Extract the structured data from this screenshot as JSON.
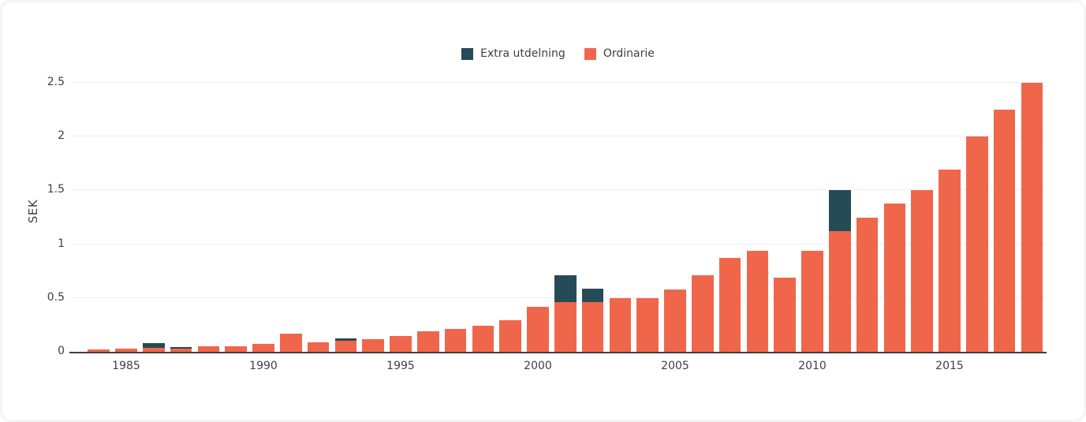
{
  "legend": {
    "items": [
      {
        "label": "Extra utdelning",
        "color": "#254b57"
      },
      {
        "label": "Ordinarie",
        "color": "#f0664b"
      }
    ]
  },
  "chart_data": {
    "type": "bar",
    "stacked": true,
    "title": "",
    "xlabel": "",
    "ylabel": "SEK",
    "ylim": [
      0,
      2.5
    ],
    "grid": true,
    "legend_position": "top-center",
    "x": [
      1984,
      1985,
      1986,
      1987,
      1988,
      1989,
      1990,
      1991,
      1992,
      1993,
      1994,
      1995,
      1996,
      1997,
      1998,
      1999,
      2000,
      2001,
      2002,
      2003,
      2004,
      2005,
      2006,
      2007,
      2008,
      2009,
      2010,
      2011,
      2012,
      2013,
      2014,
      2015,
      2016,
      2017,
      2018
    ],
    "xticks": [
      1985,
      1990,
      1995,
      2000,
      2005,
      2010,
      2015
    ],
    "ytick_values": [
      0,
      0.5,
      1,
      1.5,
      2,
      2.5
    ],
    "ytick_labels": [
      "0",
      "0.5",
      "1",
      "1.5",
      "2",
      "2.5"
    ],
    "series": [
      {
        "name": "Ordinarie",
        "color": "#f0664b",
        "values": [
          0.02,
          0.03,
          0.04,
          0.03,
          0.055,
          0.05,
          0.07,
          0.17,
          0.09,
          0.1,
          0.115,
          0.15,
          0.19,
          0.21,
          0.24,
          0.29,
          0.42,
          0.46,
          0.46,
          0.5,
          0.5,
          0.58,
          0.71,
          0.87,
          0.94,
          0.69,
          0.94,
          1.125,
          1.25,
          1.375,
          1.5,
          1.69,
          2.0,
          2.25,
          2.5
        ]
      },
      {
        "name": "Extra utdelning",
        "color": "#254b57",
        "values": [
          0,
          0,
          0.04,
          0.015,
          0,
          0,
          0,
          0,
          0,
          0.025,
          0,
          0,
          0,
          0,
          0,
          0,
          0,
          0.25,
          0.13,
          0,
          0,
          0,
          0,
          0,
          0,
          0,
          0,
          0.375,
          0,
          0,
          0,
          0,
          0,
          0,
          0
        ]
      }
    ]
  },
  "colors": {
    "ordinarie": "#f0664b",
    "extra": "#254b57",
    "gridline": "#eef0f4",
    "axis_line": "#3f3f3f",
    "tick_text": "#3f4046",
    "card_border": "#f4f4f8",
    "background": "#ffffff"
  }
}
